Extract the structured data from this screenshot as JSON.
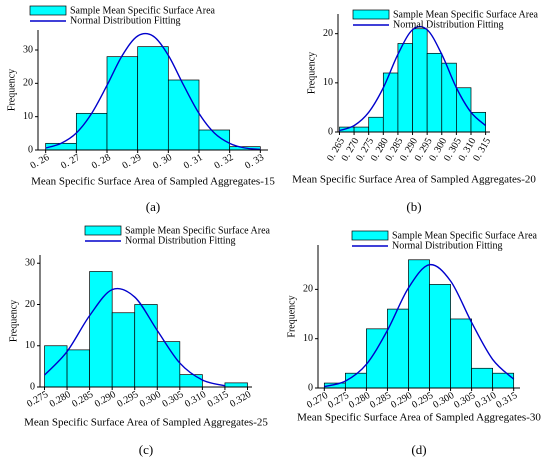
{
  "chart_data": [
    {
      "type": "histogram",
      "xlabel": "Mean Specific Surface Area of Sampled Aggregates-15",
      "ylabel": "Frequency",
      "caption": "(a)",
      "bins": [
        0.26,
        0.27,
        0.28,
        0.29,
        0.3,
        0.31,
        0.32,
        0.33
      ],
      "series": [
        {
          "name": "Sample Mean Specific Surface Area",
          "color": "#00ffff",
          "values": [
            2,
            11,
            28,
            31,
            21,
            6,
            1
          ]
        },
        {
          "name": "Normal Distribution Fitting",
          "color": "#0000cc",
          "x": [
            0.26,
            0.265,
            0.27,
            0.275,
            0.28,
            0.285,
            0.29,
            0.295,
            0.3,
            0.305,
            0.31,
            0.315,
            0.32,
            0.325,
            0.33
          ],
          "values": [
            0.6,
            2.0,
            5.1,
            11.0,
            19.4,
            28.4,
            34.2,
            34.2,
            28.4,
            19.4,
            11.0,
            5.1,
            2.0,
            0.6,
            0.2
          ]
        }
      ],
      "xlim": [
        0.2575,
        0.3325
      ],
      "ylim": [
        0,
        36
      ],
      "xticks": [
        {
          "value": 0.26,
          "label": "0. 26"
        },
        {
          "value": 0.27,
          "label": "0. 27"
        },
        {
          "value": 0.28,
          "label": "0. 28"
        },
        {
          "value": 0.29,
          "label": "0. 29"
        },
        {
          "value": 0.3,
          "label": "0. 30"
        },
        {
          "value": 0.31,
          "label": "0. 31"
        },
        {
          "value": 0.32,
          "label": "0. 32"
        },
        {
          "value": 0.33,
          "label": "0. 33"
        }
      ],
      "yticks": [
        0,
        10,
        20,
        30
      ]
    },
    {
      "type": "histogram",
      "xlabel": "Mean Specific Surface Area of Sampled Aggregates-20",
      "ylabel": "Frequency",
      "caption": "(b)",
      "bins": [
        0.265,
        0.27,
        0.275,
        0.28,
        0.285,
        0.29,
        0.295,
        0.3,
        0.305,
        0.31,
        0.315
      ],
      "series": [
        {
          "name": "Sample Mean Specific Surface Area",
          "color": "#00ffff",
          "values": [
            1,
            1,
            3,
            12,
            18,
            21,
            16,
            14,
            9,
            4
          ]
        },
        {
          "name": "Normal Distribution Fitting",
          "color": "#0000cc",
          "x": [
            0.265,
            0.27,
            0.275,
            0.28,
            0.285,
            0.29,
            0.295,
            0.3,
            0.305,
            0.31,
            0.315
          ],
          "values": [
            0.3,
            1.3,
            4.0,
            9.0,
            15.8,
            20.8,
            20.8,
            15.8,
            9.0,
            4.0,
            1.3
          ]
        }
      ],
      "xlim": [
        0.2645,
        0.3165
      ],
      "ylim": [
        0,
        24
      ],
      "xticks": [
        {
          "value": 0.265,
          "label": "0. 265"
        },
        {
          "value": 0.27,
          "label": "0. 270"
        },
        {
          "value": 0.275,
          "label": "0. 275"
        },
        {
          "value": 0.28,
          "label": "0. 280"
        },
        {
          "value": 0.285,
          "label": "0. 285"
        },
        {
          "value": 0.29,
          "label": "0. 290"
        },
        {
          "value": 0.295,
          "label": "0. 295"
        },
        {
          "value": 0.3,
          "label": "0. 300"
        },
        {
          "value": 0.305,
          "label": "0. 305"
        },
        {
          "value": 0.31,
          "label": "0. 310"
        },
        {
          "value": 0.315,
          "label": "0. 315"
        }
      ],
      "yticks": [
        0,
        10,
        20
      ]
    },
    {
      "type": "histogram",
      "xlabel": "Mean Specific Surface Area of Sampled Aggregates-25",
      "ylabel": "Frequency",
      "caption": "(c)",
      "bins": [
        0.275,
        0.28,
        0.285,
        0.29,
        0.295,
        0.3,
        0.305,
        0.31,
        0.315,
        0.32
      ],
      "series": [
        {
          "name": "Sample Mean Specific Surface Area",
          "color": "#00ffff",
          "values": [
            10,
            9,
            28,
            18,
            20,
            11,
            3,
            0,
            1
          ]
        },
        {
          "name": "Normal Distribution Fitting",
          "color": "#0000cc",
          "x": [
            0.275,
            0.28,
            0.285,
            0.29,
            0.295,
            0.3,
            0.305,
            0.31,
            0.315
          ],
          "values": [
            2.9,
            8.6,
            17.3,
            23.6,
            21.8,
            13.7,
            5.8,
            1.7,
            0.3
          ]
        }
      ],
      "xlim": [
        0.274,
        0.321
      ],
      "ylim": [
        0,
        32
      ],
      "xticks": [
        {
          "value": 0.275,
          "label": "0.275"
        },
        {
          "value": 0.28,
          "label": "0.280"
        },
        {
          "value": 0.285,
          "label": "0.285"
        },
        {
          "value": 0.29,
          "label": "0.290"
        },
        {
          "value": 0.295,
          "label": "0.295"
        },
        {
          "value": 0.3,
          "label": "0.300"
        },
        {
          "value": 0.305,
          "label": "0.305"
        },
        {
          "value": 0.31,
          "label": "0.310"
        },
        {
          "value": 0.315,
          "label": "0.315"
        },
        {
          "value": 0.32,
          "label": "0.320"
        }
      ],
      "yticks": [
        0,
        10,
        20,
        30
      ]
    },
    {
      "type": "histogram",
      "xlabel": "Mean Specific Surface Area of Sampled Aggregates-30",
      "ylabel": "Frequency",
      "caption": "(d)",
      "bins": [
        0.27,
        0.275,
        0.28,
        0.285,
        0.29,
        0.295,
        0.3,
        0.305,
        0.31,
        0.315
      ],
      "series": [
        {
          "name": "Sample Mean Specific Surface Area",
          "color": "#00ffff",
          "values": [
            1,
            3,
            12,
            16,
            26,
            21,
            14,
            4,
            3
          ]
        },
        {
          "name": "Normal Distribution Fitting",
          "color": "#0000cc",
          "x": [
            0.27,
            0.275,
            0.28,
            0.285,
            0.29,
            0.295,
            0.3,
            0.305,
            0.31,
            0.315
          ],
          "values": [
            0.3,
            1.4,
            4.8,
            11.7,
            20.3,
            25.0,
            21.7,
            13.3,
            5.8,
            1.8
          ]
        }
      ],
      "xlim": [
        0.2685,
        0.3165
      ],
      "ylim": [
        0,
        29
      ],
      "xticks": [
        {
          "value": 0.27,
          "label": "0.270"
        },
        {
          "value": 0.275,
          "label": "0.275"
        },
        {
          "value": 0.28,
          "label": "0.280"
        },
        {
          "value": 0.285,
          "label": "0.285"
        },
        {
          "value": 0.29,
          "label": "0.290"
        },
        {
          "value": 0.295,
          "label": "0.295"
        },
        {
          "value": 0.3,
          "label": "0.300"
        },
        {
          "value": 0.305,
          "label": "0.305"
        },
        {
          "value": 0.31,
          "label": "0.310"
        },
        {
          "value": 0.315,
          "label": "0.315"
        }
      ],
      "yticks": [
        0,
        10,
        20
      ]
    }
  ]
}
